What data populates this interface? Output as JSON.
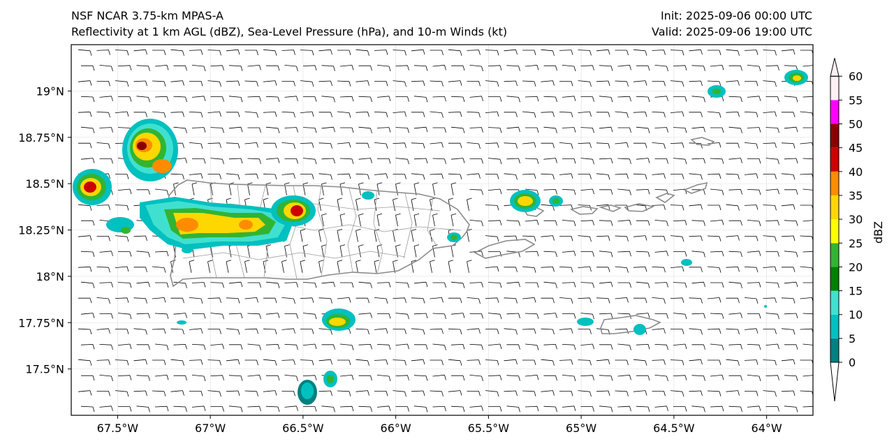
{
  "header": {
    "model_line": "NSF NCAR 3.75-km MPAS-A",
    "fields_line": "Reflectivity at 1 km AGL (dBZ), Sea-Level Pressure (hPa), and 10-m Winds (kt)",
    "init": "Init: 2025-09-06 00:00 UTC",
    "valid": "Valid: 2025-09-06 19:00 UTC"
  },
  "map": {
    "lon_range": [
      -67.75,
      -63.75
    ],
    "lat_range": [
      17.25,
      19.25
    ],
    "lon_ticks": [
      {
        "value": -67.5,
        "label": "67.5°W"
      },
      {
        "value": -67.0,
        "label": "67°W"
      },
      {
        "value": -66.5,
        "label": "66.5°W"
      },
      {
        "value": -66.0,
        "label": "66°W"
      },
      {
        "value": -65.5,
        "label": "65.5°W"
      },
      {
        "value": -65.0,
        "label": "65°W"
      },
      {
        "value": -64.5,
        "label": "64.5°W"
      },
      {
        "value": -64.0,
        "label": "64°W"
      }
    ],
    "lat_ticks": [
      {
        "value": 19.0,
        "label": "19°N"
      },
      {
        "value": 18.75,
        "label": "18.75°N"
      },
      {
        "value": 18.5,
        "label": "18.5°N"
      },
      {
        "value": 18.25,
        "label": "18.25°N"
      },
      {
        "value": 18.0,
        "label": "18°N"
      },
      {
        "value": 17.75,
        "label": "17.75°N"
      },
      {
        "value": 17.5,
        "label": "17.5°N"
      }
    ]
  },
  "colorbar": {
    "label": "dBZ",
    "ticks": [
      "0",
      "5",
      "10",
      "15",
      "20",
      "25",
      "30",
      "35",
      "40",
      "45",
      "50",
      "55",
      "60"
    ],
    "colors": [
      "#008080",
      "#00c0c0",
      "#40e0d0",
      "#008000",
      "#32b432",
      "#ffff00",
      "#ffd700",
      "#ff8c00",
      "#cd0000",
      "#8b0000",
      "#ff00ff",
      "#fff0f5"
    ]
  }
}
